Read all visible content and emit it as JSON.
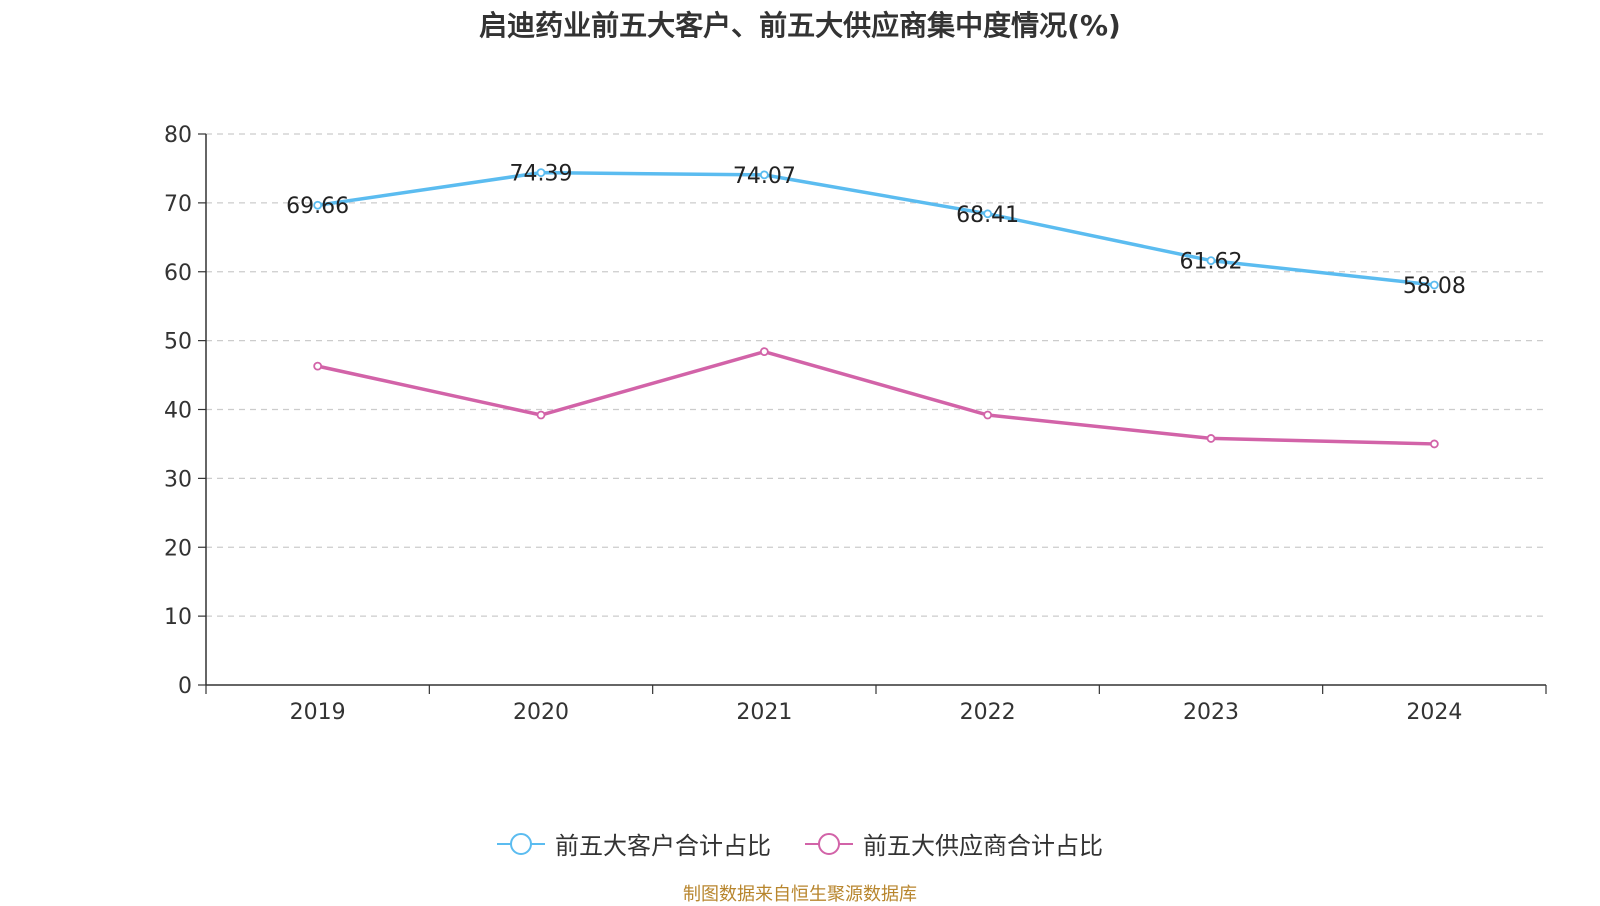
{
  "title": "启迪药业前五大客户、前五大供应商集中度情况(%)",
  "source_note": "制图数据来自恒生聚源数据库",
  "colors": {
    "customers": "#5bbcf0",
    "suppliers": "#d263a8",
    "grid": "#cccccc",
    "axis": "#333333"
  },
  "chart_data": {
    "type": "line",
    "title": "启迪药业前五大客户、前五大供应商集中度情况(%)",
    "categories": [
      "2019",
      "2020",
      "2021",
      "2022",
      "2023",
      "2024"
    ],
    "ylim": [
      0,
      80
    ],
    "yticks": [
      "0",
      "10",
      "20",
      "30",
      "40",
      "50",
      "60",
      "70",
      "80"
    ],
    "grid": true,
    "legend_position": "bottom",
    "series": [
      {
        "name": "前五大客户合计占比",
        "values": [
          69.66,
          74.39,
          74.07,
          68.41,
          61.62,
          58.08
        ],
        "labels": [
          "69.66",
          "74.39",
          "74.07",
          "68.41",
          "61.62",
          "58.08"
        ],
        "color": "#5bbcf0"
      },
      {
        "name": "前五大供应商合计占比",
        "values": [
          46.3,
          39.2,
          48.4,
          39.2,
          35.8,
          35.0
        ],
        "color": "#d263a8"
      }
    ]
  }
}
